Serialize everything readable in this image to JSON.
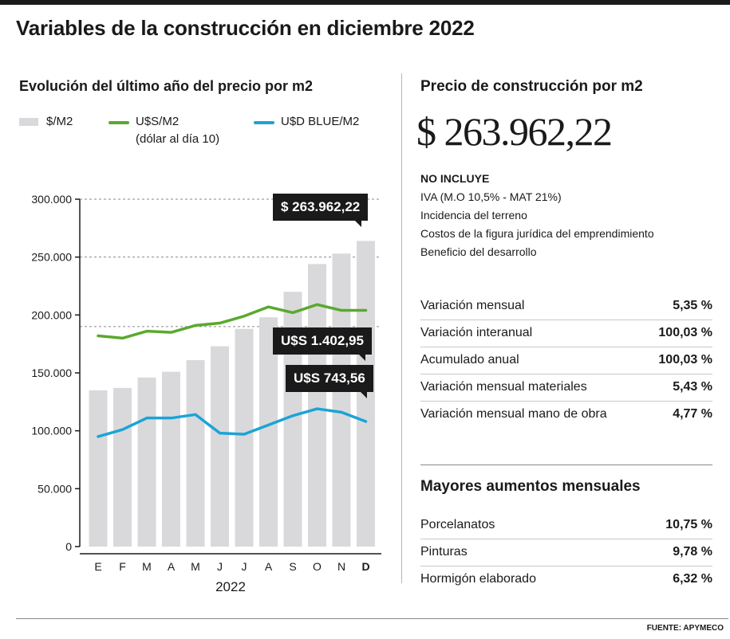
{
  "title": "Variables de la construcción en diciembre 2022",
  "left": {
    "subtitle": "Evolución del último año del precio por m2",
    "legend": {
      "bar": "$/M2",
      "green": "U$S/M2",
      "green_note": "(dólar al día 10)",
      "blue": "U$D BLUE/M2"
    },
    "callouts": {
      "peso": "$ 263.962,22",
      "usd": "U$S 1.402,95",
      "blue": "U$S 743,56"
    }
  },
  "chart_data": {
    "type": "bar",
    "categories": [
      "E",
      "F",
      "M",
      "A",
      "M",
      "J",
      "J",
      "A",
      "S",
      "O",
      "N",
      "D"
    ],
    "highlight_category_index": 11,
    "xlabel": "2022",
    "ylim": [
      0,
      300000
    ],
    "yticks": [
      0,
      50000,
      100000,
      150000,
      200000,
      250000,
      300000
    ],
    "ytick_labels": [
      "0",
      "50.000",
      "100.000",
      "150.000",
      "200.000",
      "250.000",
      "300.000"
    ],
    "dashed_gridlines": [
      300000,
      250000,
      190000
    ],
    "series": [
      {
        "name": "$/M2",
        "kind": "bar",
        "color": "#d9d9dc",
        "values": [
          135000,
          137000,
          146000,
          151000,
          161000,
          173000,
          188000,
          198000,
          220000,
          244000,
          253000,
          263962.22
        ]
      },
      {
        "name": "U$S/M2",
        "kind": "line",
        "color": "#5aa92e",
        "values": [
          182000,
          180000,
          186000,
          185000,
          191000,
          193000,
          199000,
          207000,
          202000,
          209000,
          204000,
          204000
        ]
      },
      {
        "name": "U$D BLUE/M2",
        "kind": "line",
        "color": "#1ba4d6",
        "values": [
          95000,
          101000,
          111000,
          111000,
          114000,
          98000,
          97000,
          105000,
          113000,
          119000,
          116000,
          108000
        ]
      }
    ]
  },
  "right": {
    "subtitle": "Precio de construcción por m2",
    "price": "$ 263.962,22",
    "no_incluye_title": "NO INCLUYE",
    "no_incluye": [
      "IVA (M.O 10,5% - MAT 21%)",
      "Incidencia del terreno",
      "Costos de la figura jurídica del emprendimiento",
      "Beneficio del desarrollo"
    ],
    "variations": [
      {
        "label": "Variación mensual",
        "value": "5,35 %"
      },
      {
        "label": "Variación interanual",
        "value": "100,03 %"
      },
      {
        "label": "Acumulado anual",
        "value": "100,03 %"
      },
      {
        "label": "Variación mensual materiales",
        "value": "5,43 %"
      },
      {
        "label": "Variación mensual mano de obra",
        "value": "4,77 %"
      }
    ],
    "increases_title": "Mayores aumentos mensuales",
    "increases": [
      {
        "label": "Porcelanatos",
        "value": "10,75 %"
      },
      {
        "label": "Pinturas",
        "value": "9,78 %"
      },
      {
        "label": "Hormigón elaborado",
        "value": "6,32 %"
      }
    ]
  },
  "source": "FUENTE: APYMECO"
}
